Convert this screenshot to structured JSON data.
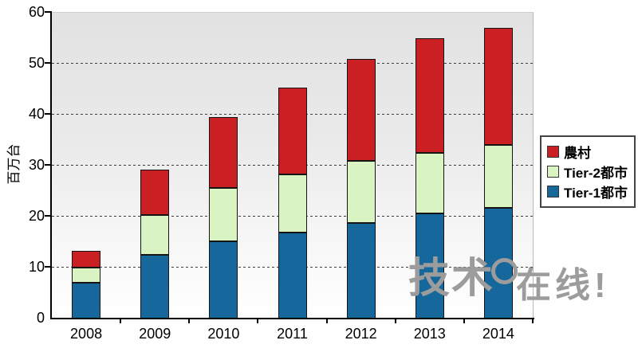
{
  "chart_data": {
    "type": "bar",
    "stacked": true,
    "title": "",
    "xlabel": "",
    "ylabel": "百万台",
    "ylim": [
      0,
      60
    ],
    "ytick_interval": 10,
    "grid": "horizontal-dashed",
    "legend_position": "right",
    "legend_order_top_to_bottom": [
      "農村",
      "Tier-2都市",
      "Tier-1都市"
    ],
    "categories": [
      "2008",
      "2009",
      "2010",
      "2011",
      "2012",
      "2013",
      "2014"
    ],
    "series": [
      {
        "name": "Tier-1都市",
        "color": "#16689c",
        "values": [
          7.0,
          12.5,
          15.2,
          16.8,
          18.7,
          20.7,
          21.7
        ]
      },
      {
        "name": "Tier-2都市",
        "color": "#d9f3c2",
        "values": [
          3.0,
          7.8,
          10.4,
          11.5,
          12.3,
          11.8,
          12.3
        ]
      },
      {
        "name": "農村",
        "color": "#cb2023",
        "values": [
          3.3,
          9.0,
          13.9,
          17.0,
          20.0,
          22.5,
          23.0
        ]
      }
    ],
    "stacked_totals": [
      13.3,
      29.3,
      39.5,
      45.3,
      51.0,
      55.0,
      57.0
    ],
    "colors": {
      "tier1": "#16689c",
      "tier2": "#d9f3c2",
      "rural": "#cb2023"
    }
  },
  "watermark": {
    "part1": "技术",
    "part2": "在线!"
  }
}
